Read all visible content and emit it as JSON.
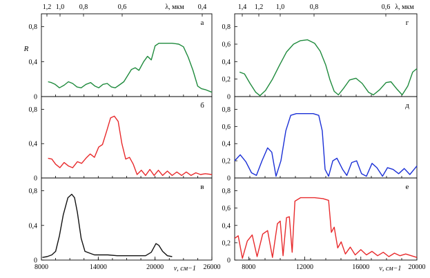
{
  "chart_data": [
    {
      "id": "a",
      "type": "line",
      "panel_label": "а",
      "color": "#1e8a3c",
      "xlim": [
        8000,
        26000
      ],
      "ylim": [
        0,
        0.9
      ],
      "yticks": [
        "0",
        "0,4",
        "0,8"
      ],
      "ylabel": "R",
      "top_axis": {
        "label": "λ, мкм",
        "ticks": [
          "1,2",
          "1,0",
          "0,8",
          "0,6",
          "0,4"
        ]
      },
      "points": [
        [
          8700,
          0.17
        ],
        [
          9050,
          0.16
        ],
        [
          9450,
          0.14
        ],
        [
          9900,
          0.1
        ],
        [
          10400,
          0.13
        ],
        [
          10850,
          0.17
        ],
        [
          11300,
          0.15
        ],
        [
          11750,
          0.11
        ],
        [
          12200,
          0.1
        ],
        [
          12700,
          0.14
        ],
        [
          13200,
          0.16
        ],
        [
          13650,
          0.12
        ],
        [
          14050,
          0.1
        ],
        [
          14500,
          0.14
        ],
        [
          14950,
          0.15
        ],
        [
          15400,
          0.11
        ],
        [
          15800,
          0.1
        ],
        [
          16200,
          0.13
        ],
        [
          16700,
          0.17
        ],
        [
          17100,
          0.24
        ],
        [
          17500,
          0.31
        ],
        [
          17900,
          0.33
        ],
        [
          18300,
          0.3
        ],
        [
          18800,
          0.4
        ],
        [
          19200,
          0.46
        ],
        [
          19600,
          0.42
        ],
        [
          20000,
          0.58
        ],
        [
          20400,
          0.61
        ],
        [
          21000,
          0.61
        ],
        [
          21800,
          0.61
        ],
        [
          22500,
          0.6
        ],
        [
          23000,
          0.57
        ],
        [
          23500,
          0.45
        ],
        [
          24000,
          0.3
        ],
        [
          24500,
          0.12
        ],
        [
          24900,
          0.09
        ],
        [
          25300,
          0.08
        ],
        [
          26000,
          0.05
        ]
      ]
    },
    {
      "id": "b",
      "type": "line",
      "panel_label": "б",
      "color": "#e8292b",
      "xlim": [
        8000,
        26000
      ],
      "ylim": [
        0,
        0.9
      ],
      "yticks": [
        "0",
        "0,4",
        "0,8"
      ],
      "points": [
        [
          8700,
          0.23
        ],
        [
          9100,
          0.22
        ],
        [
          9500,
          0.16
        ],
        [
          9950,
          0.12
        ],
        [
          10400,
          0.18
        ],
        [
          10850,
          0.14
        ],
        [
          11300,
          0.12
        ],
        [
          11800,
          0.19
        ],
        [
          12250,
          0.17
        ],
        [
          12700,
          0.23
        ],
        [
          13150,
          0.28
        ],
        [
          13600,
          0.24
        ],
        [
          14050,
          0.36
        ],
        [
          14450,
          0.39
        ],
        [
          14900,
          0.55
        ],
        [
          15300,
          0.7
        ],
        [
          15700,
          0.72
        ],
        [
          16100,
          0.66
        ],
        [
          16500,
          0.4
        ],
        [
          16900,
          0.22
        ],
        [
          17300,
          0.24
        ],
        [
          17700,
          0.16
        ],
        [
          18100,
          0.04
        ],
        [
          18550,
          0.09
        ],
        [
          19000,
          0.03
        ],
        [
          19450,
          0.1
        ],
        [
          19900,
          0.03
        ],
        [
          20350,
          0.09
        ],
        [
          20800,
          0.03
        ],
        [
          21300,
          0.08
        ],
        [
          21800,
          0.03
        ],
        [
          22300,
          0.07
        ],
        [
          22800,
          0.03
        ],
        [
          23300,
          0.07
        ],
        [
          23800,
          0.03
        ],
        [
          24300,
          0.06
        ],
        [
          24800,
          0.04
        ],
        [
          25300,
          0.05
        ],
        [
          26000,
          0.04
        ]
      ]
    },
    {
      "id": "c",
      "type": "line",
      "panel_label": "в",
      "color": "#111111",
      "xlim": [
        8000,
        26000
      ],
      "ylim": [
        0,
        0.9
      ],
      "yticks": [
        "0",
        "0,4",
        "0,8"
      ],
      "xticks": [
        "8000",
        "14000",
        "20000",
        "26000"
      ],
      "xlabel": "ν, см−1",
      "points": [
        [
          8100,
          0.03
        ],
        [
          8600,
          0.04
        ],
        [
          9100,
          0.06
        ],
        [
          9500,
          0.1
        ],
        [
          9900,
          0.28
        ],
        [
          10300,
          0.52
        ],
        [
          10800,
          0.72
        ],
        [
          11200,
          0.76
        ],
        [
          11500,
          0.72
        ],
        [
          11800,
          0.55
        ],
        [
          12200,
          0.25
        ],
        [
          12600,
          0.1
        ],
        [
          13100,
          0.08
        ],
        [
          13600,
          0.06
        ],
        [
          14100,
          0.06
        ],
        [
          15000,
          0.06
        ],
        [
          16000,
          0.05
        ],
        [
          17000,
          0.05
        ],
        [
          18000,
          0.05
        ],
        [
          19000,
          0.05
        ],
        [
          19600,
          0.09
        ],
        [
          20100,
          0.19
        ],
        [
          20400,
          0.17
        ],
        [
          20800,
          0.1
        ],
        [
          21300,
          0.05
        ],
        [
          21800,
          0.04
        ]
      ]
    },
    {
      "id": "g",
      "type": "line",
      "panel_label": "г",
      "color": "#1e8a3c",
      "xlim": [
        7000,
        20000
      ],
      "ylim": [
        0,
        0.9
      ],
      "yticks": [
        "0",
        "0,2",
        "0,4",
        "0,6",
        "0,8"
      ],
      "top_axis": {
        "label": "λ, мкм",
        "ticks": [
          "1,4",
          "1,2",
          "1,0",
          "0,8",
          "0,6"
        ]
      },
      "points": [
        [
          7350,
          0.28
        ],
        [
          7700,
          0.26
        ],
        [
          8100,
          0.15
        ],
        [
          8500,
          0.05
        ],
        [
          8800,
          0.01
        ],
        [
          9200,
          0.07
        ],
        [
          9700,
          0.2
        ],
        [
          10200,
          0.36
        ],
        [
          10700,
          0.51
        ],
        [
          11200,
          0.6
        ],
        [
          11700,
          0.64
        ],
        [
          12200,
          0.65
        ],
        [
          12700,
          0.61
        ],
        [
          13100,
          0.52
        ],
        [
          13500,
          0.36
        ],
        [
          13800,
          0.19
        ],
        [
          14100,
          0.06
        ],
        [
          14400,
          0.02
        ],
        [
          14750,
          0.09
        ],
        [
          15200,
          0.19
        ],
        [
          15650,
          0.21
        ],
        [
          16100,
          0.15
        ],
        [
          16550,
          0.05
        ],
        [
          16900,
          0.02
        ],
        [
          17350,
          0.08
        ],
        [
          17800,
          0.16
        ],
        [
          18150,
          0.17
        ],
        [
          18550,
          0.09
        ],
        [
          18950,
          0.02
        ],
        [
          19350,
          0.12
        ],
        [
          19700,
          0.28
        ],
        [
          20000,
          0.32
        ]
      ]
    },
    {
      "id": "d",
      "type": "line",
      "panel_label": "д",
      "color": "#1a2fd6",
      "xlim": [
        7000,
        20000
      ],
      "ylim": [
        0,
        0.9
      ],
      "yticks": [
        "0",
        "0,2",
        "0,4",
        "0,6",
        "0,8"
      ],
      "points": [
        [
          7000,
          0.2
        ],
        [
          7400,
          0.27
        ],
        [
          7800,
          0.19
        ],
        [
          8200,
          0.06
        ],
        [
          8550,
          0.03
        ],
        [
          8950,
          0.2
        ],
        [
          9350,
          0.35
        ],
        [
          9650,
          0.3
        ],
        [
          9950,
          0.02
        ],
        [
          10300,
          0.2
        ],
        [
          10650,
          0.55
        ],
        [
          11000,
          0.73
        ],
        [
          11400,
          0.75
        ],
        [
          12000,
          0.75
        ],
        [
          12600,
          0.75
        ],
        [
          13000,
          0.73
        ],
        [
          13250,
          0.55
        ],
        [
          13450,
          0.1
        ],
        [
          13700,
          0.02
        ],
        [
          14000,
          0.2
        ],
        [
          14300,
          0.23
        ],
        [
          14700,
          0.1
        ],
        [
          15000,
          0.03
        ],
        [
          15350,
          0.18
        ],
        [
          15700,
          0.2
        ],
        [
          16050,
          0.05
        ],
        [
          16400,
          0.02
        ],
        [
          16800,
          0.17
        ],
        [
          17150,
          0.12
        ],
        [
          17550,
          0.02
        ],
        [
          17900,
          0.12
        ],
        [
          18300,
          0.1
        ],
        [
          18700,
          0.05
        ],
        [
          19100,
          0.11
        ],
        [
          19500,
          0.04
        ],
        [
          19800,
          0.1
        ],
        [
          20000,
          0.14
        ]
      ]
    },
    {
      "id": "e",
      "type": "line",
      "panel_label": "е",
      "color": "#e8292b",
      "xlim": [
        7000,
        20000
      ],
      "ylim": [
        0,
        0.9
      ],
      "yticks": [
        "0",
        "0,2",
        "0,4",
        "0,6",
        "0,8"
      ],
      "xticks": [
        "8000",
        "12000",
        "16000",
        "20000"
      ],
      "xlabel": "ν, см−1",
      "points": [
        [
          7000,
          0.25
        ],
        [
          7250,
          0.28
        ],
        [
          7550,
          0.02
        ],
        [
          7900,
          0.22
        ],
        [
          8250,
          0.29
        ],
        [
          8600,
          0.04
        ],
        [
          9000,
          0.3
        ],
        [
          9350,
          0.34
        ],
        [
          9700,
          0.03
        ],
        [
          10050,
          0.42
        ],
        [
          10250,
          0.45
        ],
        [
          10450,
          0.05
        ],
        [
          10700,
          0.49
        ],
        [
          10900,
          0.5
        ],
        [
          11100,
          0.09
        ],
        [
          11300,
          0.68
        ],
        [
          11700,
          0.72
        ],
        [
          12200,
          0.72
        ],
        [
          12700,
          0.72
        ],
        [
          13300,
          0.71
        ],
        [
          13700,
          0.69
        ],
        [
          13900,
          0.32
        ],
        [
          14100,
          0.38
        ],
        [
          14350,
          0.14
        ],
        [
          14600,
          0.21
        ],
        [
          14900,
          0.07
        ],
        [
          15250,
          0.15
        ],
        [
          15600,
          0.06
        ],
        [
          16000,
          0.12
        ],
        [
          16400,
          0.06
        ],
        [
          16800,
          0.1
        ],
        [
          17200,
          0.05
        ],
        [
          17600,
          0.09
        ],
        [
          18000,
          0.04
        ],
        [
          18400,
          0.08
        ],
        [
          18800,
          0.05
        ],
        [
          19200,
          0.07
        ],
        [
          19600,
          0.05
        ],
        [
          20000,
          0.03
        ]
      ]
    }
  ]
}
